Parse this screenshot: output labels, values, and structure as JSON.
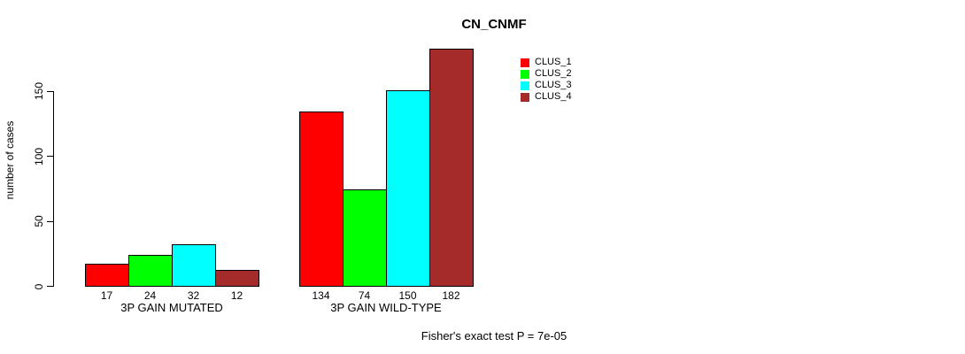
{
  "title": "CN_CNMF",
  "ylabel": "number of cases",
  "footer": "Fisher's exact test P = 7e-05",
  "colors": {
    "clus_1": "#FF0000",
    "clus_2": "#00FF00",
    "clus_3": "#00FFFF",
    "clus_4": "#A52A2A",
    "axis": "#000000",
    "background": "#FFFFFF"
  },
  "chart_data": {
    "type": "bar",
    "title": "CN_CNMF",
    "xlabel": "",
    "ylabel": "number of cases",
    "categories": [
      "3P GAIN MUTATED",
      "3P GAIN WILD-TYPE"
    ],
    "series": [
      {
        "name": "CLUS_1",
        "color": "#FF0000",
        "values": [
          17,
          134
        ]
      },
      {
        "name": "CLUS_2",
        "color": "#00FF00",
        "values": [
          24,
          74
        ]
      },
      {
        "name": "CLUS_3",
        "color": "#00FFFF",
        "values": [
          32,
          150
        ]
      },
      {
        "name": "CLUS_4",
        "color": "#A52A2A",
        "values": [
          12,
          182
        ]
      }
    ],
    "yticks": [
      0,
      50,
      100,
      150
    ],
    "ylim": [
      0,
      190
    ],
    "grid": false,
    "bar_value_labels": [
      [
        17,
        24,
        32,
        12
      ],
      [
        134,
        74,
        150,
        182
      ]
    ],
    "legend_entries": [
      "CLUS_1",
      "CLUS_2",
      "CLUS_3",
      "CLUS_4"
    ],
    "legend_position": "inside-top-center",
    "annotation": "Fisher's exact test P = 7e-05"
  }
}
